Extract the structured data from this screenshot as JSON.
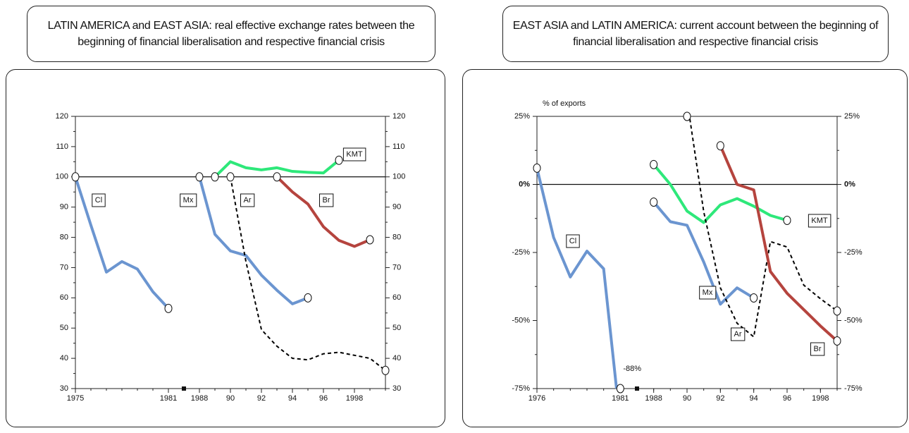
{
  "chart_data": [
    {
      "type": "line",
      "title": "LATIN AMERICA and EAST ASIA: real effective exchange rates between the beginning of financial liberalisation and respective financial crisis",
      "xlim": [
        1975,
        2000
      ],
      "xbreak": [
        1982,
        1987
      ],
      "xticks": [
        1975,
        1981,
        1988,
        {
          "value": 1990,
          "label": "90"
        },
        {
          "value": 1992,
          "label": "92"
        },
        {
          "value": 1994,
          "label": "94"
        },
        {
          "value": 1996,
          "label": "96"
        },
        1998
      ],
      "ylim": [
        30,
        120
      ],
      "yticks": [
        30,
        40,
        50,
        60,
        70,
        80,
        90,
        100,
        110,
        120
      ],
      "mirror_yticks": true,
      "hline": 100,
      "series": [
        {
          "name": "Cl",
          "color": "#6b95d0",
          "x": [
            1975,
            1976,
            1977,
            1978,
            1979,
            1980,
            1981
          ],
          "values": [
            100,
            84,
            68.5,
            72,
            69.5,
            62,
            56.5
          ]
        },
        {
          "name": "Mx",
          "color": "#6b95d0",
          "x": [
            1988,
            1989,
            1990,
            1991,
            1992,
            1993,
            1994,
            1995
          ],
          "values": [
            100,
            81,
            75.5,
            74,
            67.5,
            62.5,
            58,
            60
          ]
        },
        {
          "name": "KMT",
          "color": "#2ee87a",
          "x": [
            1989,
            1990,
            1991,
            1992,
            1993,
            1994,
            1995,
            1996,
            1997
          ],
          "values": [
            100,
            105,
            103,
            102.3,
            103,
            101.8,
            101.5,
            101.3,
            105.5
          ]
        },
        {
          "name": "Ar",
          "color": "#000000",
          "style": "dashed",
          "x": [
            1990,
            1991,
            1992,
            1993,
            1994,
            1995,
            1996,
            1997,
            1998,
            1999,
            2000
          ],
          "values": [
            100,
            72,
            49.5,
            44,
            40,
            39.5,
            41.5,
            42,
            41,
            40,
            36
          ]
        },
        {
          "name": "Br",
          "color": "#b5443e",
          "x": [
            1993,
            1994,
            1995,
            1996,
            1997,
            1998,
            1999
          ],
          "values": [
            100,
            95,
            91,
            83.5,
            79,
            77,
            79.2
          ]
        }
      ]
    },
    {
      "type": "line",
      "title": "EAST ASIA and  LATIN  AMERICA:  current account between the beginning of financial liberalisation and respective financial crisis",
      "y_label": "% of exports",
      "xlim": [
        1976,
        1999
      ],
      "xbreak": [
        1982,
        1987
      ],
      "xticks": [
        1976,
        1981,
        1988,
        {
          "value": 1990,
          "label": "90"
        },
        {
          "value": 1992,
          "label": "92"
        },
        {
          "value": 1994,
          "label": "94"
        },
        {
          "value": 1996,
          "label": "96"
        },
        1998
      ],
      "ylim": [
        -75,
        25
      ],
      "yticks": [
        {
          "value": -75,
          "label": "-75%"
        },
        {
          "value": -50,
          "label": "-50%"
        },
        {
          "value": -25,
          "label": "-25%"
        },
        {
          "value": 0,
          "label": "0%"
        },
        {
          "value": 25,
          "label": "25%"
        }
      ],
      "mirror_yticks": true,
      "hline": 0,
      "series": [
        {
          "name": "Cl",
          "color": "#6b95d0",
          "x": [
            1976,
            1977,
            1978,
            1979,
            1980,
            1981
          ],
          "values": [
            6,
            -19.5,
            -34,
            -24.5,
            -31,
            -88
          ],
          "value_labels": [
            null,
            null,
            null,
            null,
            null,
            "-88%"
          ]
        },
        {
          "name": "Mx",
          "color": "#6b95d0",
          "x": [
            1988,
            1989,
            1990,
            1991,
            1992,
            1993,
            1994
          ],
          "values": [
            -6.5,
            -13.7,
            -15,
            -28.5,
            -44,
            -38,
            -41.7
          ]
        },
        {
          "name": "KMT",
          "color": "#2ee87a",
          "x": [
            1988,
            1989,
            1990,
            1991,
            1992,
            1993,
            1994,
            1995,
            1996
          ],
          "values": [
            7.3,
            0,
            -9.8,
            -14,
            -7.5,
            -5.2,
            -8,
            -11.4,
            -13.2
          ]
        },
        {
          "name": "Ar",
          "color": "#000000",
          "style": "dashed",
          "x": [
            1990,
            1991,
            1992,
            1993,
            1994,
            1995,
            1996,
            1997,
            1998,
            1999
          ],
          "values": [
            31,
            -10,
            -38,
            -51,
            -56,
            -21,
            -23,
            -37,
            -42,
            -46.5
          ],
          "value_labels": [
            null,
            null,
            null,
            null,
            null,
            null,
            null,
            null,
            null,
            null
          ]
        },
        {
          "name": "Br",
          "color": "#b5443e",
          "x": [
            1992,
            1993,
            1994,
            1995,
            1996,
            1997,
            1998,
            1999
          ],
          "values": [
            14.2,
            0,
            -2,
            -32,
            -40,
            -46,
            -52,
            -57.5
          ]
        }
      ]
    }
  ]
}
